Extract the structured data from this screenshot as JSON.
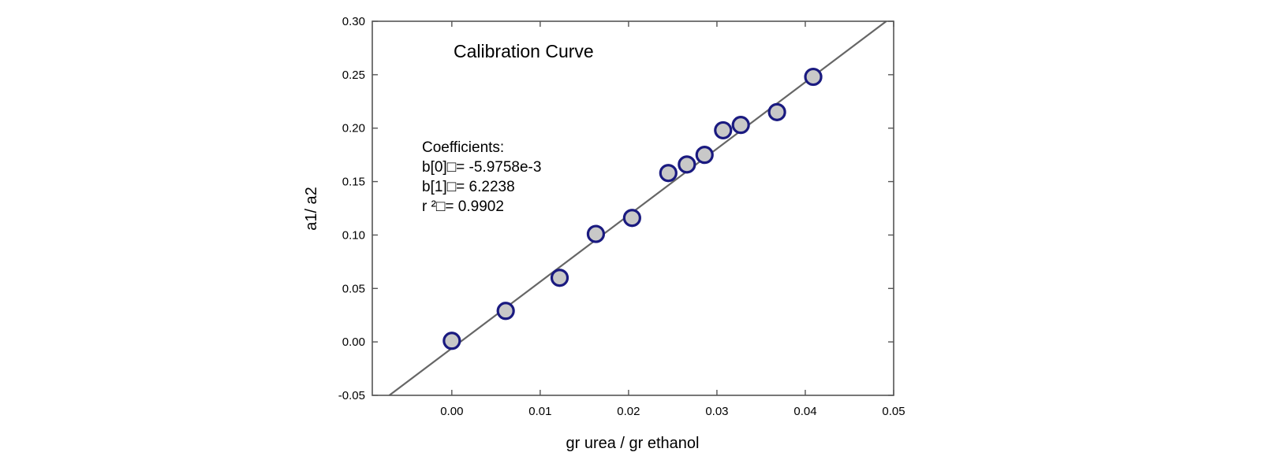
{
  "chart_data": {
    "type": "scatter",
    "title": "Calibration Curve",
    "xlabel": "gr urea / gr ethanol",
    "ylabel": "a1/ a2",
    "xlim": [
      -0.009,
      0.05
    ],
    "ylim": [
      -0.05,
      0.3
    ],
    "x_ticks": [
      "0.00",
      "0.01",
      "0.02",
      "0.03",
      "0.04",
      "0.05"
    ],
    "y_ticks": [
      "-0.05",
      "0.00",
      "0.05",
      "0.10",
      "0.15",
      "0.20",
      "0.25",
      "0.30"
    ],
    "grid": false,
    "series": [
      {
        "points": [
          {
            "x": 0.0,
            "y": 0.001
          },
          {
            "x": 0.0061,
            "y": 0.029
          },
          {
            "x": 0.0122,
            "y": 0.06
          },
          {
            "x": 0.0163,
            "y": 0.101
          },
          {
            "x": 0.0204,
            "y": 0.116
          },
          {
            "x": 0.0245,
            "y": 0.158
          },
          {
            "x": 0.0266,
            "y": 0.166
          },
          {
            "x": 0.0286,
            "y": 0.175
          },
          {
            "x": 0.0307,
            "y": 0.198
          },
          {
            "x": 0.0327,
            "y": 0.203
          },
          {
            "x": 0.0368,
            "y": 0.215
          },
          {
            "x": 0.0409,
            "y": 0.248
          }
        ],
        "marker_fill": "#c8c8c8",
        "marker_edge": "#1a1a80"
      }
    ],
    "fit_line": {
      "intercept": -0.0059758,
      "slope": 6.2238,
      "color": "#666666"
    },
    "annotation": {
      "header": "Coefficients:",
      "lines": [
        "b[0]□= -5.9758e-3",
        "b[1]□= 6.2238",
        "r ²□= 0.9902"
      ]
    }
  }
}
